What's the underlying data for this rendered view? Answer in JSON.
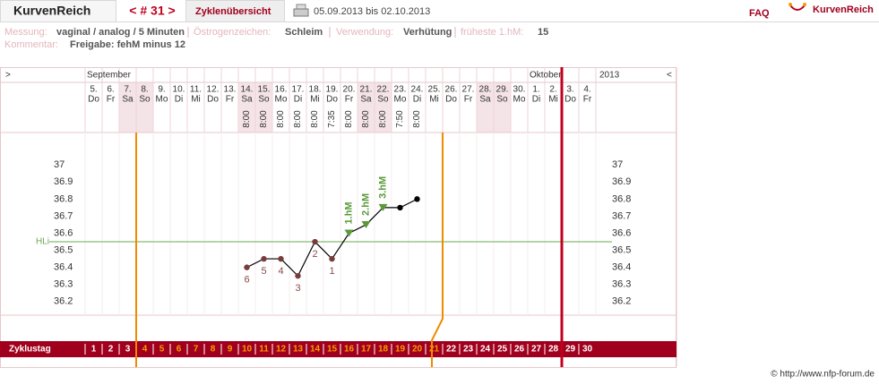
{
  "header": {
    "logo": "KurvenReich",
    "cycle_nav": "< # 31 >",
    "tab": "Zyklenübersicht",
    "date_range": "05.09.2013 bis 02.10.2013",
    "faq": "FAQ",
    "brand": "KurvenReich"
  },
  "info": {
    "measurement_label": "Messung:",
    "measurement": "vaginal / analog / 5 Minuten",
    "estrogen_label": "Östrogenzeichen:",
    "estrogen": "Schleim",
    "usage_label": "Verwendung:",
    "usage": "Verhütung",
    "earliest_label": "früheste 1.hM:",
    "earliest": "15",
    "comment_label": "Kommentar:",
    "comment": "Freigabe: fehM minus 12"
  },
  "chart_data": {
    "type": "line",
    "nav_left": ">",
    "nav_right": "<",
    "year": "2013",
    "months": [
      {
        "label": "September",
        "day_index": 0
      },
      {
        "label": "Oktober",
        "day_index": 26
      }
    ],
    "categories": [
      "5.",
      "6.",
      "7.",
      "8.",
      "9.",
      "10.",
      "11.",
      "12.",
      "13.",
      "14.",
      "15.",
      "16.",
      "17.",
      "18.",
      "19.",
      "20.",
      "21.",
      "22.",
      "23.",
      "24.",
      "25.",
      "26.",
      "27.",
      "28.",
      "29.",
      "30.",
      "1.",
      "2.",
      "3.",
      "4."
    ],
    "weekdays": [
      "Do",
      "Fr",
      "Sa",
      "So",
      "Mo",
      "Di",
      "Mi",
      "Do",
      "Fr",
      "Sa",
      "So",
      "Mo",
      "Di",
      "Mi",
      "Do",
      "Fr",
      "Sa",
      "So",
      "Mo",
      "Di",
      "Mi",
      "Do",
      "Fr",
      "Sa",
      "So",
      "Mo",
      "Di",
      "Mi",
      "Do",
      "Fr"
    ],
    "times": [
      null,
      null,
      null,
      null,
      null,
      null,
      null,
      null,
      null,
      "8:00",
      "8:00",
      "8:00",
      "8:00",
      "8:00",
      "7:35",
      "8:00",
      "8:00",
      "8:00",
      "7:50",
      "8:00",
      null,
      null,
      null,
      null,
      null,
      null,
      null,
      null,
      null,
      null
    ],
    "series": [
      {
        "color": "#000000",
        "values": [
          null,
          null,
          null,
          null,
          null,
          null,
          null,
          null,
          null,
          36.4,
          36.45,
          36.45,
          36.35,
          36.55,
          36.45,
          36.6,
          36.65,
          36.75,
          36.75,
          36.8,
          null,
          null,
          null,
          null,
          null,
          null,
          null,
          null,
          null,
          null
        ]
      }
    ],
    "point_labels": [
      null,
      null,
      null,
      null,
      null,
      null,
      null,
      null,
      null,
      "6",
      "5",
      "4",
      "3",
      "2",
      "1",
      "1.hM",
      "2.hM",
      "3.hM",
      null,
      null,
      null,
      null,
      null,
      null,
      null,
      null,
      null,
      null,
      null,
      null
    ],
    "ylim": [
      36.12,
      37.19
    ],
    "yticks": [
      36.2,
      36.3,
      36.4,
      36.5,
      36.6,
      36.7,
      36.8,
      36.9,
      37
    ],
    "hline": {
      "label": "HLi",
      "value": 36.55,
      "color": "#6aa84f"
    },
    "cycle_label": "Zyklustag",
    "cycle_days": [
      1,
      2,
      3,
      4,
      5,
      6,
      7,
      8,
      9,
      10,
      11,
      12,
      13,
      14,
      15,
      16,
      17,
      18,
      19,
      20,
      21,
      22,
      23,
      24,
      25,
      26,
      27,
      28,
      29,
      30
    ],
    "fertile_start_day": 4,
    "fertile_end_day": 21,
    "cycle_end_day": 28
  },
  "footer": {
    "copyright": "© http://www.nfp-forum.de"
  }
}
